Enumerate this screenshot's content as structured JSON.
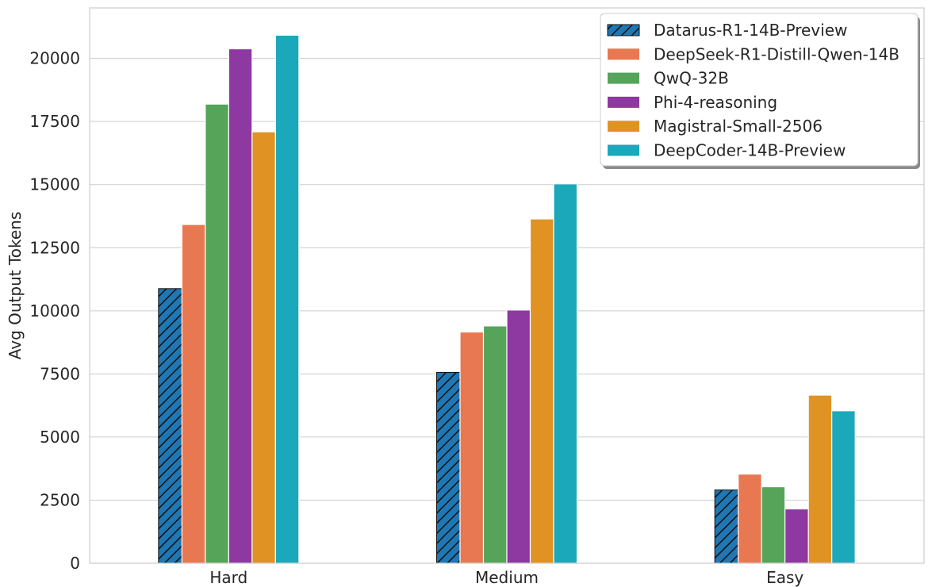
{
  "chart_data": {
    "type": "bar",
    "title": "",
    "xlabel": "",
    "ylabel": "Avg Output Tokens",
    "ylim": [
      0,
      22000
    ],
    "yticks": [
      0,
      2500,
      5000,
      7500,
      10000,
      12500,
      15000,
      17500,
      20000
    ],
    "grid": true,
    "legend_position": "top-right",
    "categories": [
      "Hard",
      "Medium",
      "Easy"
    ],
    "series": [
      {
        "name": "Datarus-R1-14B-Preview",
        "values": [
          10880,
          7560,
          2900
        ],
        "color": "#1f77b4",
        "hatch": true
      },
      {
        "name": "DeepSeek-R1-Distill-Qwen-14B",
        "values": [
          13420,
          9160,
          3530
        ],
        "color": "#e87851",
        "hatch": false
      },
      {
        "name": "QwQ-32B",
        "values": [
          18190,
          9400,
          3030
        ],
        "color": "#55a45a",
        "hatch": false
      },
      {
        "name": "Phi-4-reasoning",
        "values": [
          20380,
          10030,
          2150
        ],
        "color": "#8e38a2",
        "hatch": false
      },
      {
        "name": "Magistral-Small-2506",
        "values": [
          17090,
          13640,
          6660
        ],
        "color": "#e09323",
        "hatch": false
      },
      {
        "name": "DeepCoder-14B-Preview",
        "values": [
          20920,
          15030,
          6040
        ],
        "color": "#1ba8ba",
        "hatch": false
      }
    ]
  }
}
